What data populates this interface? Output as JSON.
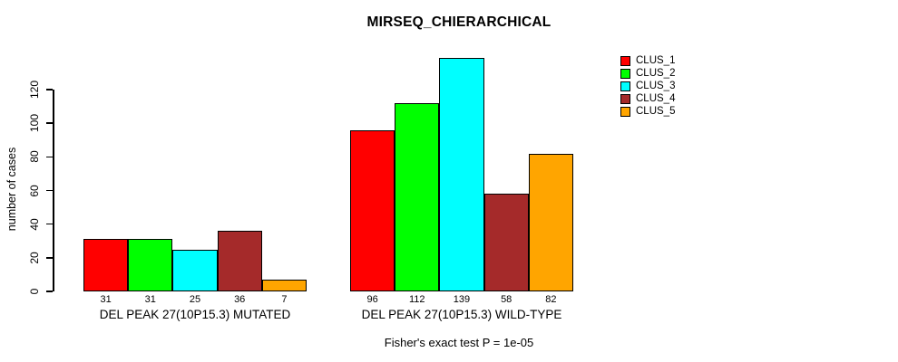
{
  "chart_data": {
    "type": "bar",
    "title": "MIRSEQ_CHIERARCHICAL",
    "ylabel": "number of cases",
    "xlabel": "",
    "ylim": [
      0,
      120
    ],
    "yticks": [
      0,
      20,
      40,
      60,
      80,
      100,
      120
    ],
    "categories": [
      "DEL PEAK 27(10P15.3) MUTATED",
      "DEL PEAK 27(10P15.3) WILD-TYPE"
    ],
    "series": [
      {
        "name": "CLUS_1",
        "color": "#FF0000",
        "values": [
          31,
          96
        ]
      },
      {
        "name": "CLUS_2",
        "color": "#00FF00",
        "values": [
          31,
          112
        ]
      },
      {
        "name": "CLUS_3",
        "color": "#00FFFF",
        "values": [
          25,
          139
        ]
      },
      {
        "name": "CLUS_4",
        "color": "#A52A2A",
        "values": [
          36,
          58
        ]
      },
      {
        "name": "CLUS_5",
        "color": "#FFA500",
        "values": [
          7,
          82
        ]
      }
    ],
    "bar_value_labels": [
      [
        31,
        31,
        25,
        36,
        7
      ],
      [
        96,
        112,
        139,
        58,
        82
      ]
    ],
    "caption": "Fisher's exact test P = 1e-05",
    "legend_position": "top-right",
    "grid": false
  }
}
